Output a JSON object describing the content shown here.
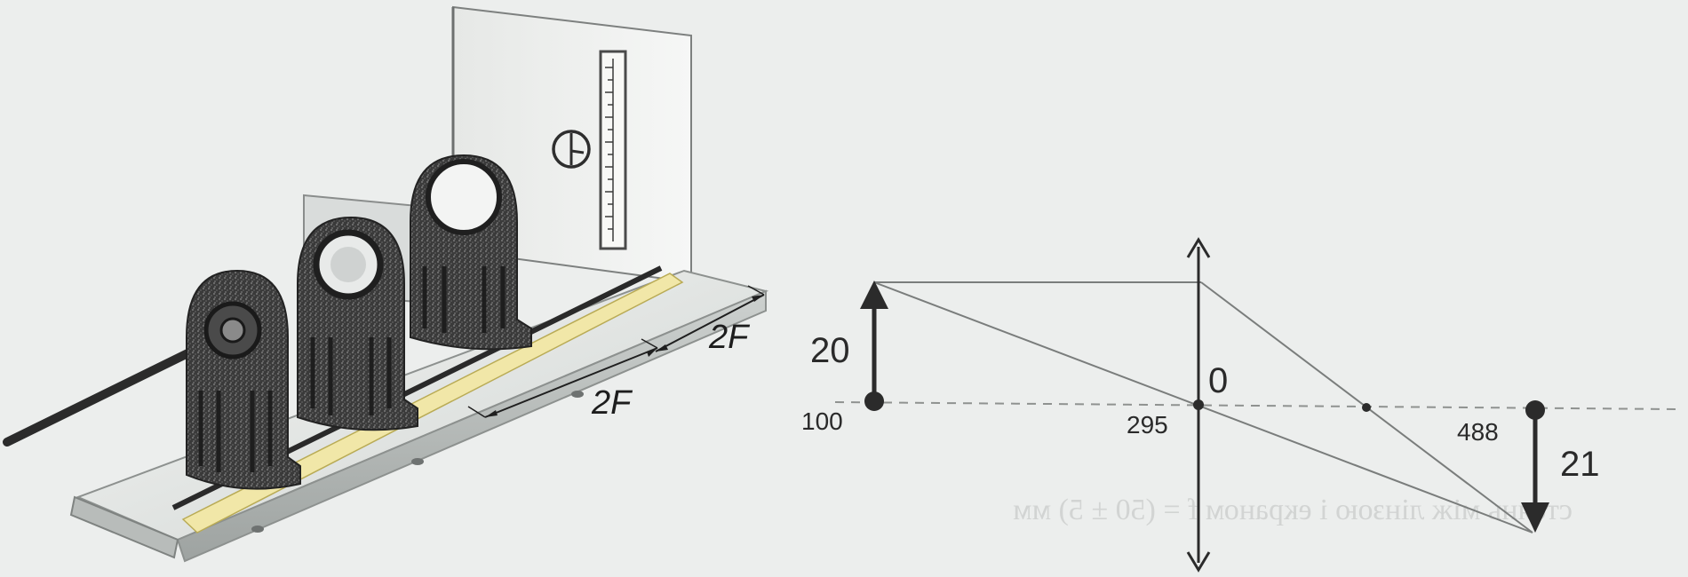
{
  "apparatus": {
    "dimension_labels": {
      "left": "2F",
      "right": "2F"
    }
  },
  "ray_diagram": {
    "object_height_label": "20",
    "object_position_label": "100",
    "lens_center_label": "0",
    "lens_position_label": "295",
    "image_position_label": "488",
    "image_height_label": "21"
  },
  "bleed_through_text": "стоянь між лінзою і екраном f = (50 ± 5) мм"
}
